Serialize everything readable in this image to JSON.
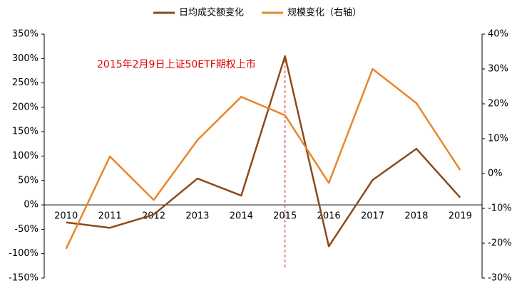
{
  "chart_data": {
    "type": "line",
    "categories": [
      "2010",
      "2011",
      "2012",
      "2013",
      "2014",
      "2015",
      "2016",
      "2017",
      "2018",
      "2019"
    ],
    "series": [
      {
        "name": "日均成交额变化",
        "color": "#8c4a1c",
        "axis": "y",
        "values": [
          -36,
          -47,
          -20,
          54,
          19,
          305,
          -85,
          51,
          115,
          15
        ]
      },
      {
        "name": "规模变化（右轴）",
        "color": "#e8862a",
        "axis": "y2",
        "values": [
          -21.6,
          4.9,
          -7.6,
          9.6,
          22,
          16.7,
          -2.7,
          30,
          20.2,
          1
        ]
      }
    ],
    "ylim": [
      -150,
      350
    ],
    "yticks": [
      {
        "value": -150,
        "label": "-150%"
      },
      {
        "value": -100,
        "label": "-100%"
      },
      {
        "value": -50,
        "label": "-50%"
      },
      {
        "value": 0,
        "label": "0%"
      },
      {
        "value": 50,
        "label": "50%"
      },
      {
        "value": 100,
        "label": "100%"
      },
      {
        "value": 150,
        "label": "150%"
      },
      {
        "value": 200,
        "label": "200%"
      },
      {
        "value": 250,
        "label": "250%"
      },
      {
        "value": 300,
        "label": "300%"
      },
      {
        "value": 350,
        "label": "350%"
      }
    ],
    "y2lim": [
      -30,
      40
    ],
    "y2ticks": [
      {
        "value": -30,
        "label": "-30%"
      },
      {
        "value": -20,
        "label": "-20%"
      },
      {
        "value": -10,
        "label": "-10%"
      },
      {
        "value": 0,
        "label": "0%"
      },
      {
        "value": 10,
        "label": "10%"
      },
      {
        "value": 20,
        "label": "20%"
      },
      {
        "value": 30,
        "label": "30%"
      },
      {
        "value": 40,
        "label": "40%"
      }
    ],
    "annotation": {
      "text": "2015年2月9日上证50ETF期权上市",
      "category": "2015",
      "color": "#e00000"
    },
    "legend": "top"
  }
}
